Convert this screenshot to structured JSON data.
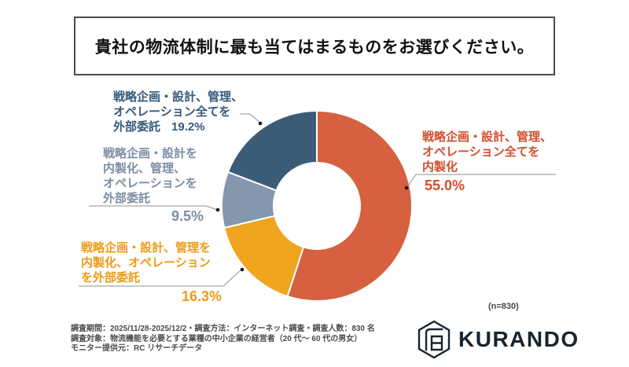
{
  "title": "貴社の物流体制に最も当てはまるものをお選びください。",
  "chart_data": {
    "type": "pie",
    "subtype": "donut",
    "categories": [
      "戦略企画・設計、管理、オペレーション全てを内製化",
      "戦略企画・設計、管理を内製化、オペレーションを外部委託",
      "戦略企画・設計を内製化、管理、オペレーションを外部委託",
      "戦略企画・設計、管理、オペレーション全てを外部委託"
    ],
    "values": [
      55.0,
      16.3,
      9.5,
      19.2
    ],
    "colors": [
      "#D6603F",
      "#F0A51F",
      "#8497AC",
      "#3A5C77"
    ],
    "start_angle_deg": 0,
    "direction": "clockwise",
    "inner_radius_ratio": 0.455,
    "legend_position": "outside-callouts",
    "n_label": "(n=830)"
  },
  "labels": {
    "own_all": {
      "lines": [
        "戦略企画・設計、管理、",
        "オペレーション全てを",
        "内製化"
      ],
      "percent": "55.0%",
      "color": "#D14E2C"
    },
    "outsource_ops": {
      "lines": [
        "戦略企画・設計、管理を",
        "内製化、オペレーション",
        "を外部委託"
      ],
      "percent": "16.3%",
      "color": "#ED9A14"
    },
    "outsource_mgmt_ops": {
      "lines": [
        "戦略企画・設計を",
        "内製化、管理、",
        "オペレーションを",
        "外部委託"
      ],
      "percent": "9.5%",
      "color": "#7C8EA3"
    },
    "outsource_all": {
      "lines": [
        "戦略企画・設計、管理、",
        "オペレーション全てを",
        "外部委託"
      ],
      "percent": "19.2%",
      "color": "#35597B"
    }
  },
  "footer": {
    "lines": [
      "調査期間：2025/11/28-2025/12/2・調査方法：インターネット調査・調査人数：830 名",
      "調査対象：物流機能を必要とする業種の中小企業の経営者（20 代～ 60 代の男女）",
      "モニター提供元：RC リサーチデータ"
    ]
  },
  "logo": {
    "text": "KURANDO"
  }
}
